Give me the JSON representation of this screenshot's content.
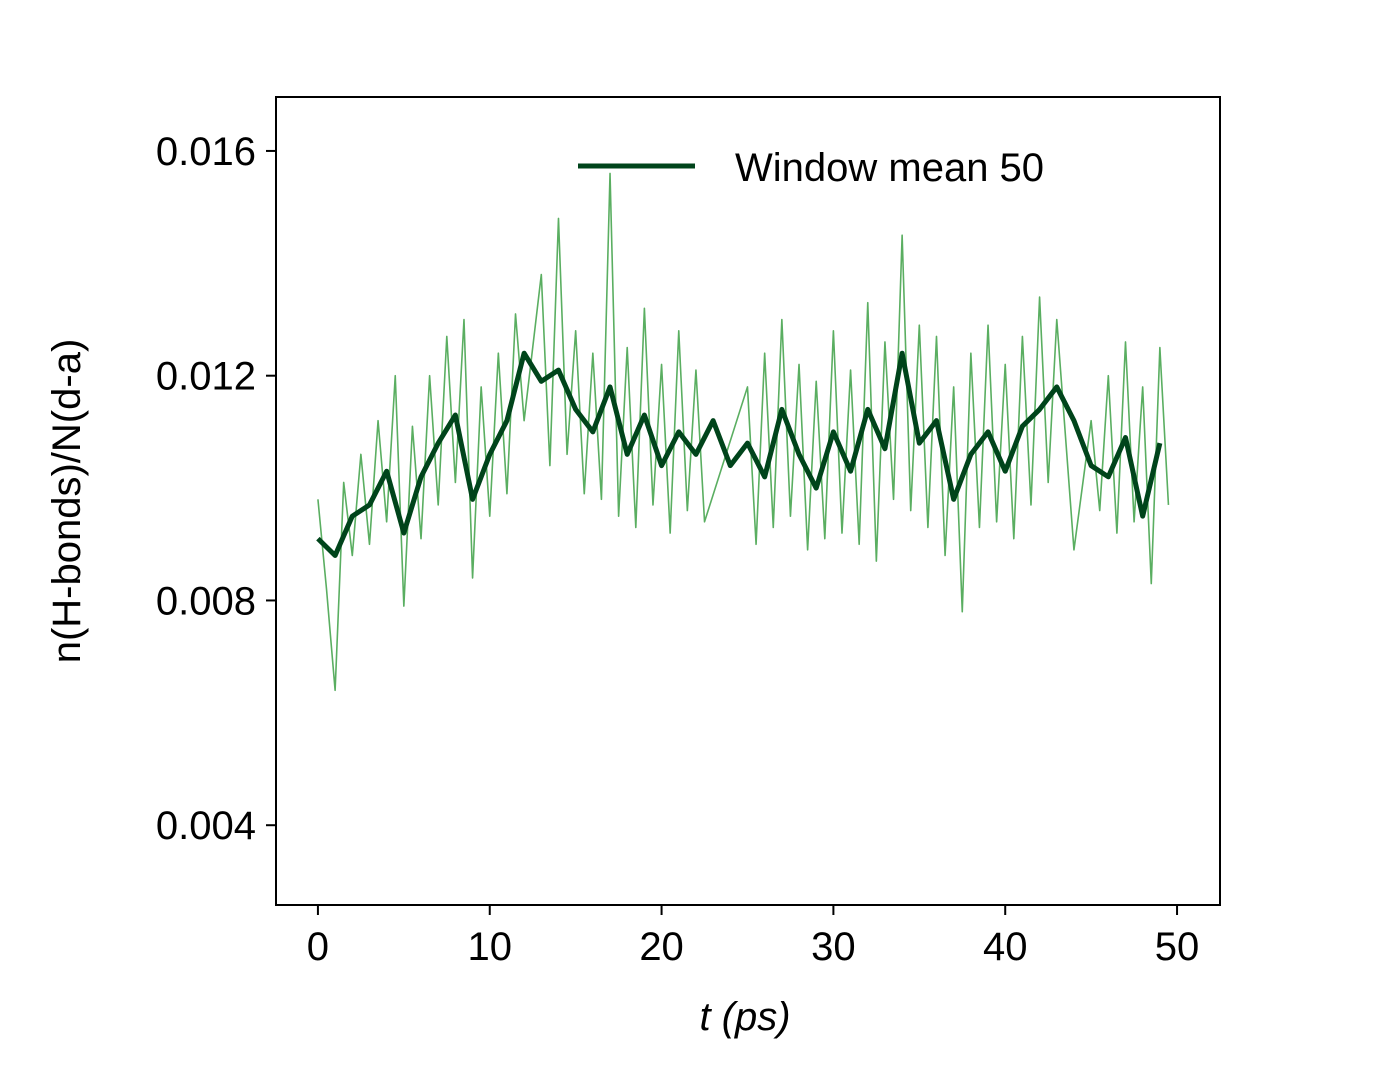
{
  "chart_data": {
    "type": "line",
    "xlabel": "t (ps)",
    "ylabel": "n(H-bonds)/N(d-a)",
    "xlim": [
      -2.44,
      52.5
    ],
    "xticks": [
      0,
      10,
      20,
      30,
      40,
      50
    ],
    "ylim": [
      0.00258,
      0.01696
    ],
    "yticks": [
      0.004,
      0.008,
      0.012,
      0.016
    ],
    "legend": "upper right",
    "series": [
      {
        "color": "#5aae61",
        "width": 1.6,
        "x": [
          0,
          0.5,
          1,
          1.5,
          2,
          2.5,
          3,
          3.5,
          4,
          4.5,
          5,
          5.5,
          6,
          6.5,
          7,
          7.5,
          8,
          8.5,
          9,
          9.5,
          10,
          10.5,
          11,
          11.5,
          12,
          13,
          13.5,
          14,
          14.5,
          15,
          15.5,
          16,
          16.5,
          17,
          17.5,
          18,
          18.5,
          19,
          19.5,
          20,
          20.5,
          21,
          21.5,
          22,
          22.5,
          25,
          25.5,
          26,
          26.5,
          27,
          27.5,
          28,
          28.5,
          29,
          29.5,
          30,
          30.5,
          31,
          31.5,
          32,
          32.5,
          33,
          33.5,
          34,
          34.5,
          35,
          35.5,
          36,
          36.5,
          37,
          37.5,
          38,
          38.5,
          39,
          39.5,
          40,
          40.5,
          41,
          41.5,
          42,
          42.5,
          43,
          44,
          45,
          45.5,
          46,
          46.5,
          47,
          47.5,
          48,
          48.5,
          49,
          49.5
        ],
        "values": [
          0.0098,
          0.0082,
          0.0064,
          0.0101,
          0.0088,
          0.0106,
          0.009,
          0.0112,
          0.0094,
          0.012,
          0.0079,
          0.0111,
          0.0091,
          0.012,
          0.0097,
          0.0127,
          0.0101,
          0.013,
          0.0084,
          0.0118,
          0.0095,
          0.0124,
          0.0099,
          0.0131,
          0.0112,
          0.0138,
          0.0104,
          0.0148,
          0.0106,
          0.0128,
          0.0099,
          0.0124,
          0.0098,
          0.0156,
          0.0095,
          0.0125,
          0.0093,
          0.0132,
          0.0097,
          0.0122,
          0.0092,
          0.0128,
          0.0096,
          0.0121,
          0.0094,
          0.0118,
          0.009,
          0.0124,
          0.0093,
          0.013,
          0.0095,
          0.0122,
          0.0089,
          0.0119,
          0.0091,
          0.0128,
          0.0092,
          0.0121,
          0.009,
          0.0133,
          0.0087,
          0.0126,
          0.0098,
          0.0145,
          0.0096,
          0.0129,
          0.0093,
          0.0127,
          0.0088,
          0.0118,
          0.0078,
          0.0124,
          0.0093,
          0.0129,
          0.0094,
          0.0122,
          0.0091,
          0.0127,
          0.0097,
          0.0134,
          0.0101,
          0.013,
          0.0089,
          0.0112,
          0.0096,
          0.012,
          0.0092,
          0.0126,
          0.0094,
          0.0118,
          0.0083,
          0.0125,
          0.0097
        ]
      },
      {
        "name": "Window mean 50",
        "color": "#00441b",
        "width": 5,
        "x": [
          0,
          1,
          2,
          3,
          4,
          5,
          6,
          7,
          8,
          9,
          10,
          11,
          12,
          13,
          14,
          15,
          16,
          17,
          18,
          19,
          20,
          21,
          22,
          23,
          24,
          25,
          26,
          27,
          28,
          29,
          30,
          31,
          32,
          33,
          34,
          35,
          36,
          37,
          38,
          39,
          40,
          41,
          42,
          43,
          44,
          45,
          46,
          47,
          48,
          49
        ],
        "values": [
          0.0091,
          0.0088,
          0.0095,
          0.0097,
          0.0103,
          0.0092,
          0.0102,
          0.0108,
          0.0113,
          0.0098,
          0.0106,
          0.0112,
          0.0124,
          0.0119,
          0.0121,
          0.0114,
          0.011,
          0.0118,
          0.0106,
          0.0113,
          0.0104,
          0.011,
          0.0106,
          0.0112,
          0.0104,
          0.0108,
          0.0102,
          0.0114,
          0.0106,
          0.01,
          0.011,
          0.0103,
          0.0114,
          0.0107,
          0.0124,
          0.0108,
          0.0112,
          0.0098,
          0.0106,
          0.011,
          0.0103,
          0.0111,
          0.0114,
          0.0118,
          0.0112,
          0.0104,
          0.0102,
          0.0109,
          0.0095,
          0.0108
        ]
      }
    ]
  }
}
